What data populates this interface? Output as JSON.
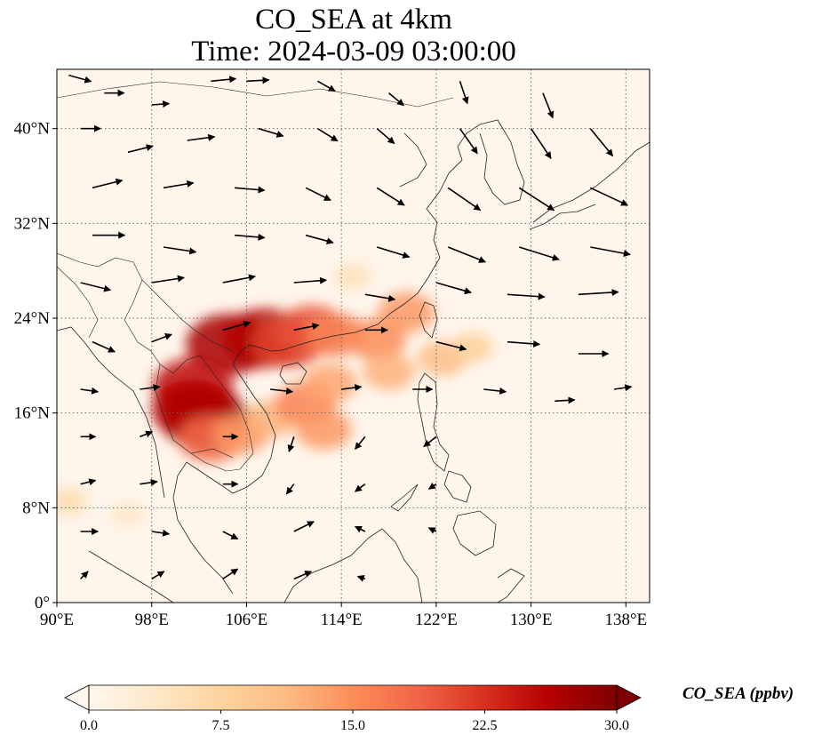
{
  "figure": {
    "title_line1": "CO_SEA at 4km",
    "title_line2": "Time: 2024-03-09 03:00:00"
  },
  "map": {
    "lon_range": [
      90,
      140
    ],
    "lat_range": [
      0,
      45
    ],
    "x_ticks": [
      "90°E",
      "98°E",
      "106°E",
      "114°E",
      "122°E",
      "130°E",
      "138°E"
    ],
    "y_ticks": [
      "0°",
      "8°N",
      "16°N",
      "24°N",
      "32°N",
      "40°N"
    ],
    "gridlines": true,
    "background_color": "#fff5eb",
    "features": [
      "coastlines",
      "country borders",
      "wind vectors"
    ]
  },
  "colorbar": {
    "label": "CO_SEA (ppbv)",
    "ticks": [
      "0.0",
      "7.5",
      "15.0",
      "22.5",
      "30.0"
    ],
    "range": [
      0,
      30
    ],
    "extend": "both",
    "colormap": "OrRd",
    "colors": [
      "#fff7ec",
      "#fee8c8",
      "#fdd49e",
      "#fdbb84",
      "#fc8d59",
      "#ef6548",
      "#d7301f",
      "#b30000",
      "#7f0000"
    ]
  },
  "chart_data": {
    "type": "heatmap",
    "title": "CO_SEA at 4km\nTime: 2024-03-09 03:00:00",
    "variable": "CO_SEA",
    "units": "ppbv",
    "xlim": [
      90,
      140
    ],
    "ylim": [
      0,
      45
    ],
    "concentration_hotspots": [
      {
        "lon": 104.5,
        "lat": 21.8,
        "value": 27
      },
      {
        "lon": 107.5,
        "lat": 22.3,
        "value": 26
      },
      {
        "lon": 109.5,
        "lat": 22.0,
        "value": 21
      },
      {
        "lon": 111.5,
        "lat": 23.0,
        "value": 20
      },
      {
        "lon": 113.5,
        "lat": 22.6,
        "value": 16
      },
      {
        "lon": 117.0,
        "lat": 22.2,
        "value": 15
      },
      {
        "lon": 119.5,
        "lat": 24.5,
        "value": 14
      },
      {
        "lon": 101.5,
        "lat": 18.2,
        "value": 25
      },
      {
        "lon": 102.5,
        "lat": 15.5,
        "value": 28
      },
      {
        "lon": 101.5,
        "lat": 16.3,
        "value": 26
      },
      {
        "lon": 103.0,
        "lat": 13.8,
        "value": 18
      },
      {
        "lon": 105.5,
        "lat": 14.2,
        "value": 14
      },
      {
        "lon": 108.0,
        "lat": 15.5,
        "value": 12
      },
      {
        "lon": 111.0,
        "lat": 16.8,
        "value": 16
      },
      {
        "lon": 113.0,
        "lat": 18.5,
        "value": 13
      },
      {
        "lon": 112.5,
        "lat": 14.6,
        "value": 14
      },
      {
        "lon": 118.0,
        "lat": 19.5,
        "value": 12
      },
      {
        "lon": 122.5,
        "lat": 20.6,
        "value": 11
      },
      {
        "lon": 125.0,
        "lat": 21.5,
        "value": 8
      },
      {
        "lon": 115.0,
        "lat": 27.5,
        "value": 5
      },
      {
        "lon": 91.0,
        "lat": 8.5,
        "value": 6
      },
      {
        "lon": 96.0,
        "lat": 7.5,
        "value": 4
      }
    ],
    "wind_vectors": [
      {
        "lon": 91,
        "lat": 44.5,
        "u": 1.8,
        "v": -0.5
      },
      {
        "lon": 94,
        "lat": 43,
        "u": 1.6,
        "v": 0
      },
      {
        "lon": 98,
        "lat": 42,
        "u": 1.4,
        "v": 0.1
      },
      {
        "lon": 103,
        "lat": 44,
        "u": 2.0,
        "v": 0.2
      },
      {
        "lon": 106,
        "lat": 44,
        "u": 1.8,
        "v": 0.1
      },
      {
        "lon": 112,
        "lat": 44,
        "u": 1.4,
        "v": -0.8
      },
      {
        "lon": 118,
        "lat": 43,
        "u": 1.2,
        "v": -1.0
      },
      {
        "lon": 124,
        "lat": 44,
        "u": 0.6,
        "v": -1.8
      },
      {
        "lon": 131,
        "lat": 43,
        "u": 0.8,
        "v": -2.0
      },
      {
        "lon": 92,
        "lat": 40,
        "u": 1.6,
        "v": 0
      },
      {
        "lon": 96,
        "lat": 38,
        "u": 2.0,
        "v": 0.5
      },
      {
        "lon": 101,
        "lat": 39,
        "u": 2.2,
        "v": 0.3
      },
      {
        "lon": 107,
        "lat": 40,
        "u": 2.0,
        "v": -0.6
      },
      {
        "lon": 112,
        "lat": 40,
        "u": 1.6,
        "v": -1.0
      },
      {
        "lon": 117,
        "lat": 40,
        "u": 1.4,
        "v": -1.2
      },
      {
        "lon": 124,
        "lat": 40,
        "u": 1.4,
        "v": -2.0
      },
      {
        "lon": 130,
        "lat": 40,
        "u": 1.6,
        "v": -2.4
      },
      {
        "lon": 135,
        "lat": 40,
        "u": 1.8,
        "v": -2.2
      },
      {
        "lon": 93,
        "lat": 35,
        "u": 2.4,
        "v": 0.6
      },
      {
        "lon": 99,
        "lat": 35,
        "u": 2.4,
        "v": 0.4
      },
      {
        "lon": 105,
        "lat": 35,
        "u": 2.4,
        "v": -0.2
      },
      {
        "lon": 111,
        "lat": 35,
        "u": 2.0,
        "v": -1.0
      },
      {
        "lon": 117,
        "lat": 35,
        "u": 2.2,
        "v": -1.4
      },
      {
        "lon": 123,
        "lat": 35,
        "u": 2.6,
        "v": -1.8
      },
      {
        "lon": 129,
        "lat": 35,
        "u": 2.8,
        "v": -1.8
      },
      {
        "lon": 135,
        "lat": 35,
        "u": 3.0,
        "v": -1.4
      },
      {
        "lon": 93,
        "lat": 31,
        "u": 2.6,
        "v": 0
      },
      {
        "lon": 99,
        "lat": 30,
        "u": 2.6,
        "v": -0.4
      },
      {
        "lon": 105,
        "lat": 31,
        "u": 2.4,
        "v": -0.2
      },
      {
        "lon": 111,
        "lat": 31,
        "u": 2.2,
        "v": -0.6
      },
      {
        "lon": 117,
        "lat": 30,
        "u": 2.6,
        "v": -0.8
      },
      {
        "lon": 123,
        "lat": 30,
        "u": 3.0,
        "v": -1.2
      },
      {
        "lon": 129,
        "lat": 30,
        "u": 3.2,
        "v": -1.0
      },
      {
        "lon": 135,
        "lat": 30,
        "u": 3.2,
        "v": -0.6
      },
      {
        "lon": 92,
        "lat": 27,
        "u": 2.4,
        "v": -0.6
      },
      {
        "lon": 98,
        "lat": 27,
        "u": 2.6,
        "v": 0.4
      },
      {
        "lon": 104,
        "lat": 27,
        "u": 2.6,
        "v": 0.5
      },
      {
        "lon": 110,
        "lat": 27,
        "u": 2.6,
        "v": 0.2
      },
      {
        "lon": 116,
        "lat": 26,
        "u": 2.4,
        "v": -0.4
      },
      {
        "lon": 122,
        "lat": 27,
        "u": 2.8,
        "v": -0.8
      },
      {
        "lon": 128,
        "lat": 26,
        "u": 3.0,
        "v": -0.2
      },
      {
        "lon": 134,
        "lat": 26,
        "u": 3.2,
        "v": 0.2
      },
      {
        "lon": 93,
        "lat": 22,
        "u": 1.8,
        "v": -0.8
      },
      {
        "lon": 98,
        "lat": 22,
        "u": 1.6,
        "v": 0.6
      },
      {
        "lon": 104,
        "lat": 23,
        "u": 2.2,
        "v": 0.6
      },
      {
        "lon": 110,
        "lat": 23,
        "u": 2.0,
        "v": 0.4
      },
      {
        "lon": 116,
        "lat": 23,
        "u": 1.8,
        "v": 0
      },
      {
        "lon": 122,
        "lat": 22,
        "u": 2.4,
        "v": -0.6
      },
      {
        "lon": 128,
        "lat": 22,
        "u": 2.6,
        "v": -0.2
      },
      {
        "lon": 134,
        "lat": 21,
        "u": 2.4,
        "v": 0
      },
      {
        "lon": 92,
        "lat": 18,
        "u": 1.4,
        "v": -0.2
      },
      {
        "lon": 97,
        "lat": 18,
        "u": 1.6,
        "v": 0.2
      },
      {
        "lon": 108,
        "lat": 18,
        "u": 1.8,
        "v": -0.2
      },
      {
        "lon": 114,
        "lat": 18,
        "u": 1.6,
        "v": 0.2
      },
      {
        "lon": 120,
        "lat": 18,
        "u": 1.6,
        "v": 0
      },
      {
        "lon": 126,
        "lat": 18,
        "u": 1.8,
        "v": -0.2
      },
      {
        "lon": 132,
        "lat": 17,
        "u": 1.6,
        "v": 0.1
      },
      {
        "lon": 137,
        "lat": 18,
        "u": 1.4,
        "v": 0.2
      },
      {
        "lon": 92,
        "lat": 14,
        "u": 1.2,
        "v": 0
      },
      {
        "lon": 97,
        "lat": 14,
        "u": 1.0,
        "v": 0.4
      },
      {
        "lon": 104,
        "lat": 14,
        "u": 1.2,
        "v": 0
      },
      {
        "lon": 110,
        "lat": 14,
        "u": -0.4,
        "v": -1.2
      },
      {
        "lon": 116,
        "lat": 14,
        "u": -0.8,
        "v": -1.0
      },
      {
        "lon": 122,
        "lat": 14,
        "u": -1.0,
        "v": -0.8
      },
      {
        "lon": 92,
        "lat": 10,
        "u": 1.2,
        "v": 0.3
      },
      {
        "lon": 97,
        "lat": 10,
        "u": 1.4,
        "v": 0.2
      },
      {
        "lon": 104,
        "lat": 10,
        "u": 1.2,
        "v": 0
      },
      {
        "lon": 110,
        "lat": 10,
        "u": -0.6,
        "v": -0.8
      },
      {
        "lon": 116,
        "lat": 10,
        "u": -0.8,
        "v": -0.6
      },
      {
        "lon": 122,
        "lat": 10,
        "u": -0.6,
        "v": -0.4
      },
      {
        "lon": 92,
        "lat": 6,
        "u": 1.4,
        "v": 0
      },
      {
        "lon": 98,
        "lat": 6,
        "u": 1.4,
        "v": -0.2
      },
      {
        "lon": 104,
        "lat": 6,
        "u": 1.2,
        "v": -0.6
      },
      {
        "lon": 110,
        "lat": 6,
        "u": 1.6,
        "v": 0.8
      },
      {
        "lon": 116,
        "lat": 6,
        "u": -0.8,
        "v": 0.4
      },
      {
        "lon": 122,
        "lat": 6,
        "u": -0.6,
        "v": 0.3
      },
      {
        "lon": 92,
        "lat": 2,
        "u": 0.6,
        "v": 0.6
      },
      {
        "lon": 98,
        "lat": 2,
        "u": 1.0,
        "v": 0.6
      },
      {
        "lon": 104,
        "lat": 2,
        "u": 1.2,
        "v": 0.8
      },
      {
        "lon": 110,
        "lat": 2,
        "u": 1.4,
        "v": 0.6
      },
      {
        "lon": 116,
        "lat": 2,
        "u": -0.6,
        "v": 0.2
      }
    ]
  }
}
